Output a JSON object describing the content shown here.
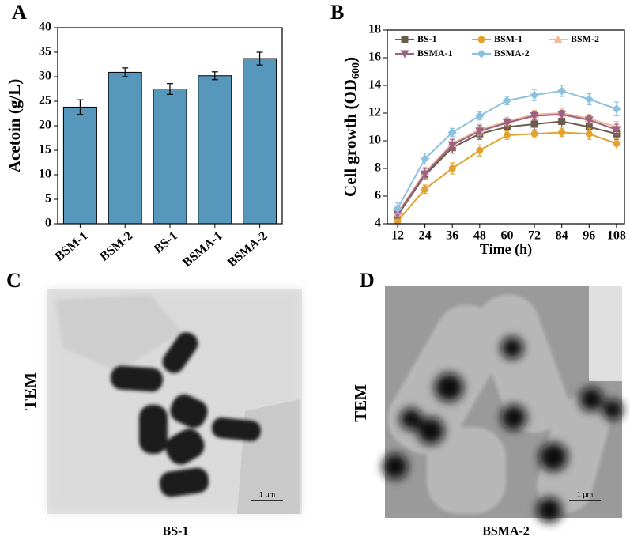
{
  "chart_data": [
    {
      "type": "bar",
      "panel_label": "A",
      "ylabel": "Acetoin (g/L)",
      "categories": [
        "BSM-1",
        "BSM-2",
        "BS-1",
        "BSMA-1",
        "BSMA-2"
      ],
      "values": [
        23.8,
        30.9,
        27.5,
        30.2,
        33.7
      ],
      "errors": [
        1.5,
        0.9,
        1.1,
        0.8,
        1.3
      ],
      "color": "#5897bc",
      "ylim": [
        0,
        40
      ],
      "yticks": [
        0,
        5,
        10,
        15,
        20,
        25,
        30,
        35,
        40
      ]
    },
    {
      "type": "line",
      "panel_label": "B",
      "xlabel": "Time (h)",
      "ylabel": {
        "text": "Cell growth (OD",
        "subscript": "600",
        "suffix": ")"
      },
      "x": [
        12,
        24,
        36,
        48,
        60,
        72,
        84,
        96,
        108
      ],
      "series": [
        {
          "name": "BS-1",
          "color": "#6b5b4b",
          "marker": "square",
          "values": [
            4.6,
            7.5,
            9.5,
            10.5,
            11.0,
            11.2,
            11.4,
            11.0,
            10.5
          ],
          "errors": [
            0.3,
            0.3,
            0.4,
            0.4,
            0.3,
            0.4,
            0.4,
            0.4,
            0.4
          ]
        },
        {
          "name": "BSM-1",
          "color": "#e3a22e",
          "marker": "circle",
          "values": [
            4.2,
            6.5,
            8.0,
            9.3,
            10.4,
            10.5,
            10.6,
            10.5,
            9.8
          ],
          "errors": [
            0.3,
            0.3,
            0.4,
            0.4,
            0.3,
            0.3,
            0.3,
            0.4,
            0.4
          ]
        },
        {
          "name": "BSM-2",
          "color": "#f2b796",
          "marker": "triangle-up",
          "values": [
            4.8,
            7.7,
            9.8,
            10.8,
            11.4,
            11.9,
            12.0,
            11.6,
            11.0
          ],
          "errors": [
            0.3,
            0.4,
            0.4,
            0.4,
            0.3,
            0.3,
            0.3,
            0.3,
            0.4
          ]
        },
        {
          "name": "BSMA-1",
          "color": "#9b6283",
          "marker": "triangle-down",
          "values": [
            4.7,
            7.6,
            9.7,
            10.7,
            11.3,
            11.8,
            11.9,
            11.5,
            10.8
          ],
          "errors": [
            0.3,
            0.4,
            0.4,
            0.4,
            0.3,
            0.3,
            0.3,
            0.3,
            0.4
          ]
        },
        {
          "name": "BSMA-2",
          "color": "#8cc2df",
          "marker": "diamond",
          "values": [
            5.1,
            8.7,
            10.6,
            11.8,
            12.9,
            13.3,
            13.6,
            13.0,
            12.3
          ],
          "errors": [
            0.4,
            0.4,
            0.3,
            0.3,
            0.3,
            0.4,
            0.4,
            0.4,
            0.5
          ]
        }
      ],
      "legend": "upper left",
      "xlim": [
        7.5,
        111.5
      ],
      "xticks": [
        12,
        24,
        36,
        48,
        60,
        72,
        84,
        96,
        108
      ],
      "ylim": [
        4,
        18
      ],
      "yticks": [
        4,
        6,
        8,
        10,
        12,
        14,
        16,
        18
      ]
    }
  ],
  "panels": [
    {
      "label": "C",
      "side_label": "TEM",
      "caption": "BS-1",
      "scale_bar": "1 μm"
    },
    {
      "label": "D",
      "side_label": "TEM",
      "caption": "BSMA-2",
      "scale_bar": "1 μm"
    }
  ]
}
